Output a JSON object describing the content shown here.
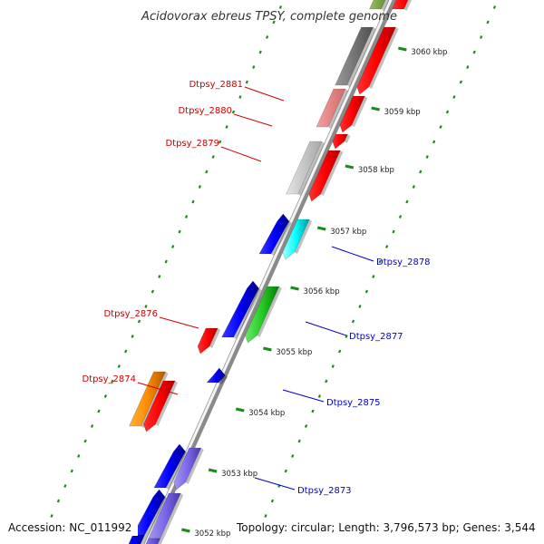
{
  "title": "Acidovorax ebreus TPSY, complete genome",
  "footer": {
    "accession": "Accession: NC_011992",
    "summary": "Topology: circular; Length: 3,796,573 bp; Genes: 3,544"
  },
  "colors": {
    "left_label": "#cc0000",
    "right_label": "#0000cc",
    "tick": "#1a8a1a",
    "backbone": "#8a8a8a"
  },
  "scale_ticks": [
    {
      "label": "3060 kbp"
    },
    {
      "label": "3059 kbp"
    },
    {
      "label": "3058 kbp"
    },
    {
      "label": "3057 kbp"
    },
    {
      "label": "3056 kbp"
    },
    {
      "label": "3055 kbp"
    },
    {
      "label": "3054 kbp"
    },
    {
      "label": "3053 kbp"
    },
    {
      "label": "3052 kbp"
    }
  ],
  "gene_labels": [
    {
      "name": "Dtpsy_2881",
      "side": "left"
    },
    {
      "name": "Dtpsy_2880",
      "side": "left"
    },
    {
      "name": "Dtpsy_2879",
      "side": "left"
    },
    {
      "name": "Dtpsy_2878",
      "side": "right"
    },
    {
      "name": "Dtpsy_2876",
      "side": "left"
    },
    {
      "name": "Dtpsy_2877",
      "side": "right"
    },
    {
      "name": "Dtpsy_2874",
      "side": "left"
    },
    {
      "name": "Dtpsy_2875",
      "side": "right"
    },
    {
      "name": "Dtpsy_2873",
      "side": "right"
    }
  ]
}
